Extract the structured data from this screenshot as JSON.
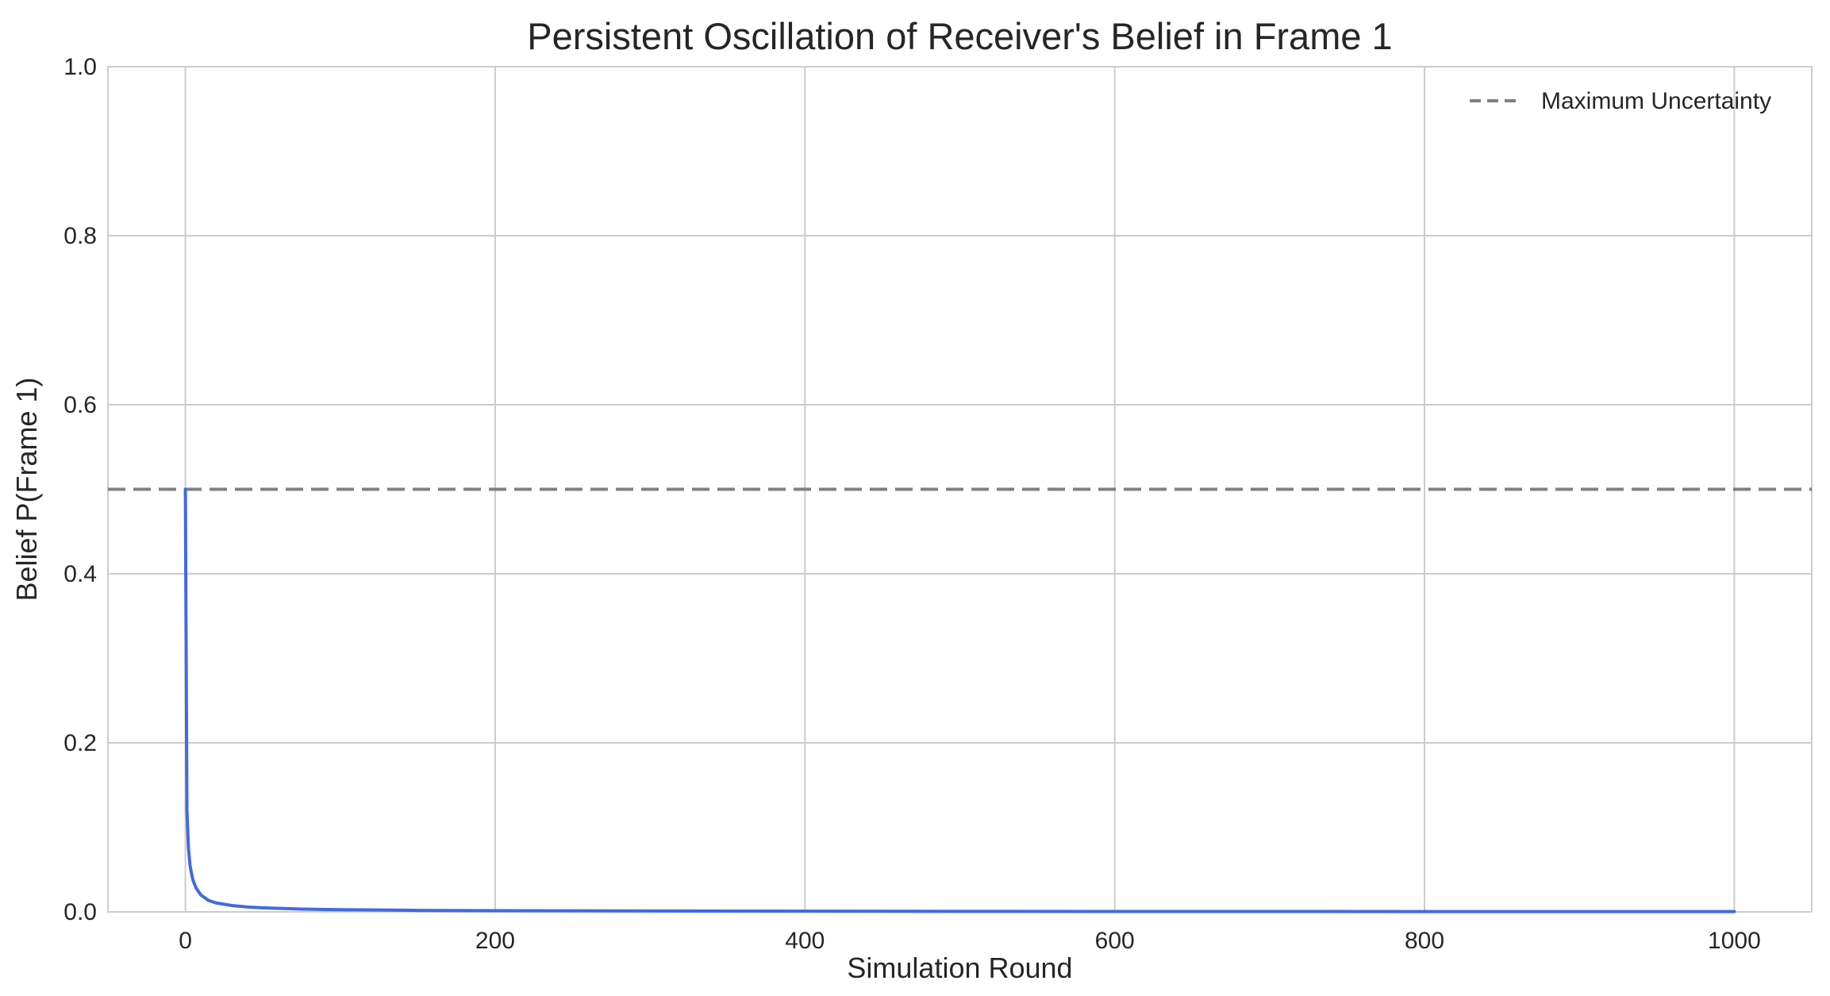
{
  "chart_data": {
    "type": "line",
    "title": "Persistent Oscillation of Receiver's Belief in Frame 1",
    "xlabel": "Simulation Round",
    "ylabel": "Belief P(Frame 1)",
    "xlim": [
      -50,
      1050
    ],
    "ylim": [
      0.0,
      1.0
    ],
    "xticks": [
      0,
      200,
      400,
      600,
      800,
      1000
    ],
    "xtick_labels": [
      "0",
      "200",
      "400",
      "600",
      "800",
      "1000"
    ],
    "yticks": [
      0.0,
      0.2,
      0.4,
      0.6,
      0.8,
      1.0
    ],
    "ytick_labels": [
      "0.0",
      "0.2",
      "0.4",
      "0.6",
      "0.8",
      "1.0"
    ],
    "grid": true,
    "legend_position": "top-right",
    "series": [
      {
        "name": "",
        "color": "#4169e1",
        "style": "solid",
        "x": [
          0,
          1,
          2,
          3,
          4,
          5,
          7,
          10,
          15,
          20,
          30,
          40,
          50,
          75,
          100,
          150,
          200,
          300,
          400,
          500,
          600,
          700,
          800,
          900,
          1000
        ],
        "y": [
          0.5,
          0.12,
          0.075,
          0.055,
          0.045,
          0.037,
          0.028,
          0.02,
          0.0135,
          0.0105,
          0.0075,
          0.0058,
          0.0048,
          0.0033,
          0.0026,
          0.0018,
          0.0014,
          0.001,
          0.0008,
          0.0006,
          0.0005,
          0.00045,
          0.0004,
          0.00035,
          0.0003
        ]
      }
    ],
    "reference_lines": [
      {
        "name": "Maximum Uncertainty",
        "orientation": "horizontal",
        "y": 0.5,
        "color": "#808080",
        "style": "dashed"
      }
    ]
  }
}
